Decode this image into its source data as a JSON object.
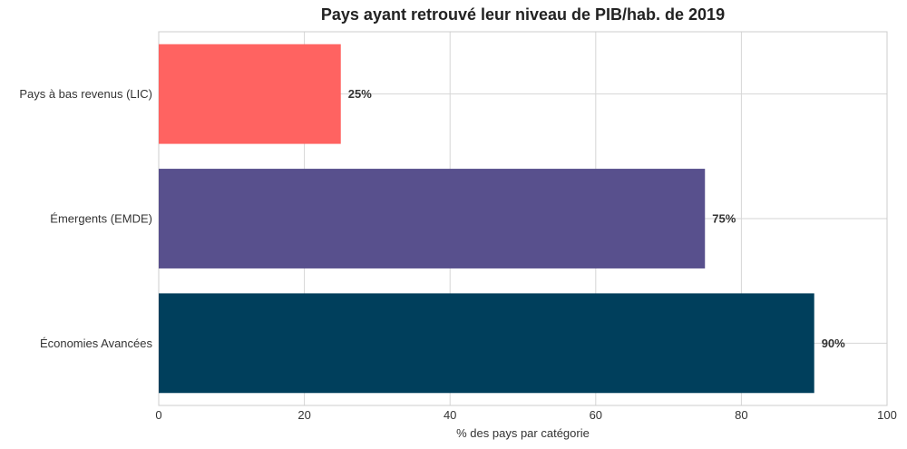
{
  "chart_data": {
    "type": "bar",
    "orientation": "horizontal",
    "title": "Pays ayant retrouvé leur niveau de PIB/hab. de 2019",
    "xlabel": "% des pays par catégorie",
    "ylabel": "",
    "xlim": [
      0,
      100
    ],
    "xticks": [
      "0",
      "20",
      "40",
      "60",
      "80",
      "100"
    ],
    "categories": [
      "Pays à bas revenus (LIC)",
      "Émergents (EMDE)",
      "Économies Avancées"
    ],
    "values": [
      25,
      75,
      90
    ],
    "value_labels": [
      "25%",
      "75%",
      "90%"
    ],
    "colors": [
      "#ff6361",
      "#58508d",
      "#003f5c"
    ],
    "grid": true,
    "legend": "none"
  }
}
